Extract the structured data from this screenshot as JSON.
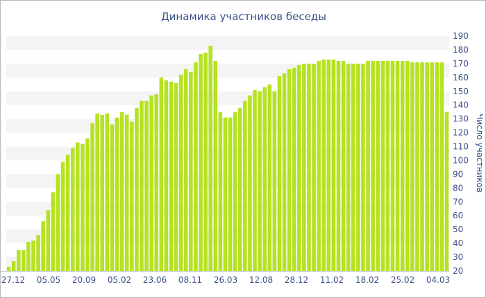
{
  "chart_data": {
    "type": "bar",
    "title": "Динамика участников беседы",
    "xlabel": "",
    "ylabel": "Число участников",
    "x_tick_labels": [
      "27.12",
      "05.05",
      "20.09",
      "05.02",
      "23.06",
      "08.11",
      "26.03",
      "12.08",
      "28.12",
      "11.02",
      "18.02",
      "25.02",
      "04.03"
    ],
    "y_ticks": [
      20,
      30,
      40,
      50,
      60,
      70,
      80,
      90,
      100,
      110,
      120,
      130,
      140,
      150,
      160,
      170,
      180,
      190
    ],
    "ylim": [
      20,
      190
    ],
    "y_axis_side": "right",
    "grid": "alternating horizontal bands",
    "values": [
      23,
      27,
      35,
      35,
      41,
      42,
      46,
      56,
      64,
      77,
      90,
      99,
      104,
      109,
      113,
      112,
      116,
      127,
      134,
      133,
      134,
      126,
      131,
      135,
      133,
      128,
      138,
      143,
      143,
      147,
      148,
      160,
      158,
      157,
      156,
      162,
      166,
      164,
      171,
      177,
      178,
      183,
      172,
      135,
      131,
      131,
      135,
      138,
      143,
      147,
      151,
      150,
      153,
      155,
      150,
      161,
      163,
      166,
      167,
      169,
      170,
      170,
      170,
      172,
      173,
      173,
      173,
      172,
      172,
      170,
      170,
      170,
      170,
      172,
      172,
      172,
      172,
      172,
      172,
      172,
      172,
      172,
      171,
      171,
      171,
      171,
      171,
      171,
      171,
      135
    ],
    "colors": {
      "bar": "#b5e320",
      "band": "#f4f4f4",
      "text": "#3a4f86",
      "title": "#3a4f86"
    }
  }
}
